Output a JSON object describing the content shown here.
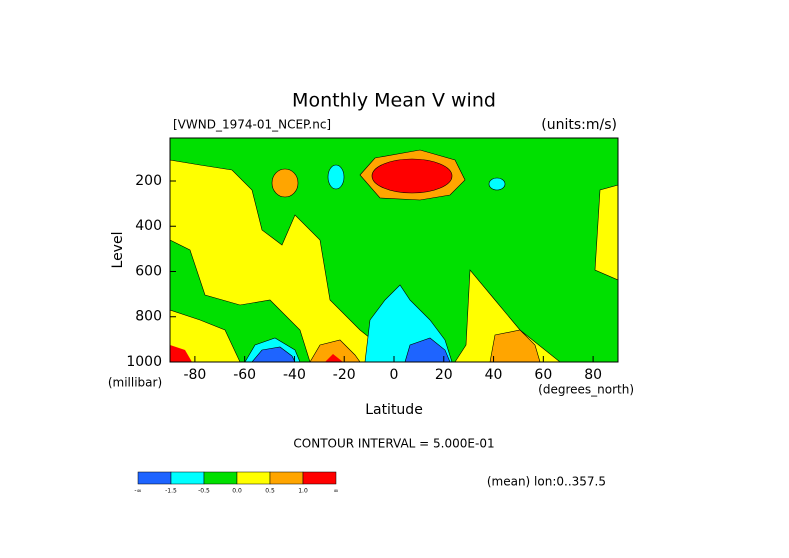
{
  "chart_data": {
    "type": "contour",
    "title": "Monthly Mean V wind",
    "subtitle": "[VWND_1974-01_NCEP.nc]",
    "units": "(units:m/s)",
    "y_label": "Level",
    "y_unit": "(millibar)",
    "x_label": "Latitude",
    "x_unit": "(degrees_north)",
    "contour_note": "CONTOUR INTERVAL = 5.000E-01",
    "footnote": "(mean) lon:0..357.5",
    "xlim": [
      -90,
      90
    ],
    "xticks": [
      -80,
      -60,
      -40,
      -20,
      0,
      20,
      40,
      60,
      80
    ],
    "ylim": [
      1000,
      10
    ],
    "yticks": [
      200,
      400,
      600,
      800,
      1000
    ],
    "colorbar": {
      "labels": [
        "-∞",
        "-1.5",
        "-0.5",
        "0.0",
        "0.5",
        "1.0",
        "∞"
      ],
      "colors": [
        "#1e64ff",
        "#00ffff",
        "#00e000",
        "#ffff00",
        "#ffa500",
        "#ff0000"
      ]
    }
  }
}
